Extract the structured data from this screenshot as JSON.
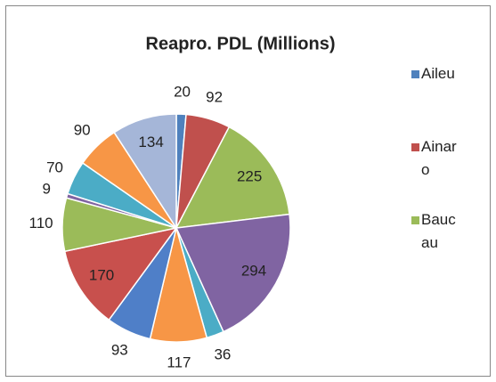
{
  "chart_data": {
    "type": "pie",
    "title": "Reapro. PDL (Millions)",
    "categories": [
      "Aileu",
      "Ainaro",
      "Baucau",
      null,
      null,
      null,
      null,
      null,
      null,
      null,
      null,
      null,
      null
    ],
    "values": [
      20,
      92,
      225,
      294,
      36,
      117,
      93,
      170,
      110,
      9,
      70,
      90,
      134
    ],
    "colors": [
      "#4f81bd",
      "#c0504d",
      "#9bbb59",
      "#8064a2",
      "#4bacc6",
      "#f79646",
      "#4f7fc8",
      "#c8504d",
      "#9bbb59",
      "#8064a2",
      "#4bacc6",
      "#f79646",
      "#a5b6d8"
    ],
    "legend": "right"
  }
}
